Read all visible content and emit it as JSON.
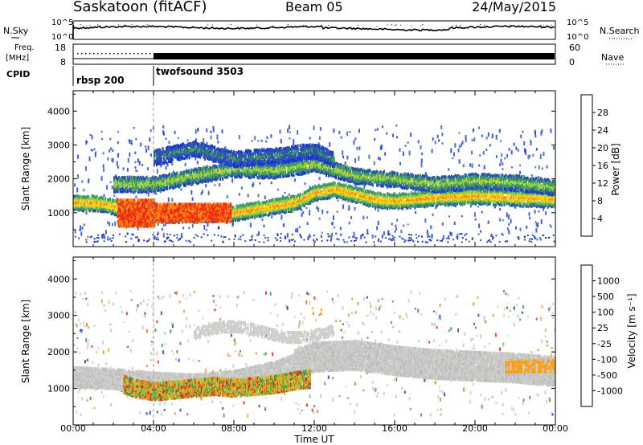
{
  "header": {
    "station": "Saskatoon (fitACF)",
    "beam": "Beam 05",
    "date": "24/May/2015"
  },
  "meta_panel": {
    "nsky_label": "N.Sky",
    "nsearch_label": "N.Search",
    "count_ticks": [
      "10^5",
      "10^0"
    ],
    "freq_label_1": "Freq.",
    "freq_label_2": "[MHz]",
    "freq_ticks": [
      "18",
      "8"
    ],
    "nave_label": "Nave",
    "nave_ticks": [
      "60",
      "0"
    ],
    "cpid_label": "CPID",
    "programs": [
      {
        "name": "rbsp 200",
        "start_hour": 0
      },
      {
        "name": "twofsound 3503",
        "start_hour": 4
      }
    ]
  },
  "chart_data": [
    {
      "type": "heatmap",
      "title": "Power",
      "xlabel": "",
      "ylabel": "Slant Range [km]",
      "xlim": [
        0,
        24
      ],
      "ylim": [
        0,
        4600
      ],
      "yticks": [
        1000,
        2000,
        3000,
        4000
      ],
      "colorbar": {
        "label": "Power [dB]",
        "ticks": [
          "4",
          "8",
          "12",
          "16",
          "20",
          "24",
          "28"
        ],
        "range": [
          0,
          32
        ],
        "colors": [
          "#1633e0",
          "#2d56a8",
          "#3f9a63",
          "#9ccd3c",
          "#ffd21a",
          "#ff8a12",
          "#ef2a12"
        ]
      },
      "bands": [
        {
          "hours": [
            0,
            1,
            2,
            3,
            4,
            6,
            8,
            9,
            10,
            11,
            12,
            13,
            14,
            15,
            16,
            18,
            20,
            22,
            24
          ],
          "range_km": [
            1350,
            1350,
            1250,
            950,
            1000,
            1000,
            1050,
            1150,
            1250,
            1350,
            1650,
            1750,
            1600,
            1450,
            1400,
            1500,
            1550,
            1500,
            1450
          ],
          "power_db": 22
        },
        {
          "hours": [
            2,
            4,
            6,
            8,
            10,
            12,
            14,
            16,
            18,
            20,
            22,
            24
          ],
          "range_km": [
            1900,
            1900,
            2150,
            2350,
            2300,
            2500,
            2150,
            2050,
            1900,
            2000,
            1950,
            1800
          ],
          "power_db": 15
        },
        {
          "hours": [
            4,
            6,
            8,
            10,
            12,
            13
          ],
          "range_km": [
            2700,
            2950,
            2650,
            2750,
            2900,
            2600
          ],
          "power_db": 9
        }
      ]
    },
    {
      "type": "heatmap",
      "title": "Velocity",
      "xlabel": "Time UT",
      "ylabel": "Slant Range [km]",
      "xlim": [
        0,
        24
      ],
      "ylim": [
        0,
        4600
      ],
      "yticks": [
        1000,
        2000,
        3000,
        4000
      ],
      "xticks": [
        "00:00",
        "04:00",
        "08:00",
        "12:00",
        "16:00",
        "20:00",
        "00:00"
      ],
      "colorbar": {
        "label": "Velocity [m s⁻¹]",
        "ticks": [
          "1000",
          "500",
          "100",
          "25",
          "-25",
          "-100",
          "-500",
          "-1000"
        ],
        "colors": [
          "#2040c0",
          "#3a9a54",
          "#78c83a",
          "#c8c8c4",
          "#f7a21a",
          "#ef7a12",
          "#e8261a"
        ]
      },
      "ground_scatter_band": {
        "hours": [
          0,
          2,
          4,
          6,
          8,
          10,
          12,
          14,
          16,
          18,
          20,
          22,
          24
        ],
        "range_km": [
          1350,
          1300,
          1200,
          1150,
          1250,
          1500,
          1900,
          1950,
          1800,
          1700,
          1650,
          1600,
          1500
        ]
      },
      "ionospheric_patch": {
        "hours": [
          2.5,
          3,
          4,
          5,
          6,
          7,
          8,
          9,
          10,
          11,
          11.8
        ],
        "range_km": [
          1150,
          1050,
          950,
          1000,
          1050,
          1100,
          1050,
          1100,
          1150,
          1250,
          1300
        ],
        "velocity_ms": -300
      }
    }
  ]
}
